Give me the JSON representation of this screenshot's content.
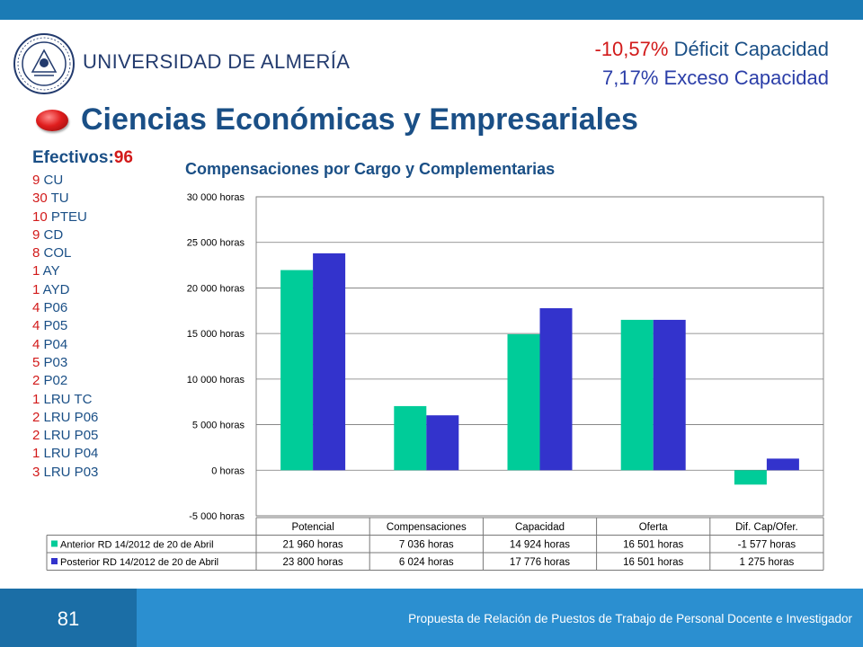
{
  "header": {
    "university": "UNIVERSIDAD DE ALMERÍA",
    "stats": [
      {
        "value": "-10,57%",
        "label": " Déficit Capacidad"
      },
      {
        "value": "7,17%",
        "label": " Exceso Capacidad"
      }
    ]
  },
  "title": "Ciencias Económicas y Empresariales",
  "staff": {
    "label": "Efectivos:",
    "total": "96",
    "rows": [
      {
        "n": "9",
        "cat": " CU"
      },
      {
        "n": "30",
        "cat": " TU"
      },
      {
        "n": "10",
        "cat": " PTEU"
      },
      {
        "n": "9",
        "cat": " CD"
      },
      {
        "n": "8",
        "cat": " COL"
      },
      {
        "n": "1",
        "cat": " AY"
      },
      {
        "n": "1",
        "cat": " AYD"
      },
      {
        "n": "4",
        "cat": " P06"
      },
      {
        "n": "4",
        "cat": " P05"
      },
      {
        "n": "4",
        "cat": " P04"
      },
      {
        "n": "5",
        "cat": " P03"
      },
      {
        "n": "2",
        "cat": " P02"
      },
      {
        "n": "1",
        "cat": " LRU TC"
      },
      {
        "n": "2",
        "cat": " LRU P06"
      },
      {
        "n": "2",
        "cat": " LRU P05"
      },
      {
        "n": "1",
        "cat": " LRU P04"
      },
      {
        "n": "3",
        "cat": " LRU P03"
      }
    ]
  },
  "chart_data": {
    "type": "bar",
    "title": "Compensaciones por Cargo y Complementarias",
    "categories": [
      "Potencial",
      "Compensaciones",
      "Capacidad",
      "Oferta",
      "Dif. Cap/Ofer."
    ],
    "series": [
      {
        "name": "Anterior RD 14/2012 de 20 de Abril",
        "color": "#00cc99",
        "values": [
          21960,
          7036,
          14924,
          16501,
          -1577
        ],
        "labels": [
          "21 960 horas",
          "7 036 horas",
          "14 924 horas",
          "16 501 horas",
          "-1 577 horas"
        ]
      },
      {
        "name": "Posterior RD 14/2012 de 20 de Abril",
        "color": "#3333cc",
        "values": [
          23800,
          6024,
          17776,
          16501,
          1275
        ],
        "labels": [
          "23 800 horas",
          "6 024 horas",
          "17 776 horas",
          "16 501 horas",
          "1 275 horas"
        ]
      }
    ],
    "ylim": [
      -5000,
      30000
    ],
    "yticks": [
      -5000,
      0,
      5000,
      10000,
      15000,
      20000,
      25000,
      30000
    ],
    "ytick_labels": [
      "-5 000 horas",
      "0 horas",
      "5 000 horas",
      "10 000 horas",
      "15 000 horas",
      "20 000 horas",
      "25 000 horas",
      "30 000 horas"
    ],
    "grid": true,
    "legend": "data-table"
  },
  "footer": {
    "page": "81",
    "text": "Propuesta de Relación de Puestos de Trabajo de Personal Docente e Investigador"
  }
}
